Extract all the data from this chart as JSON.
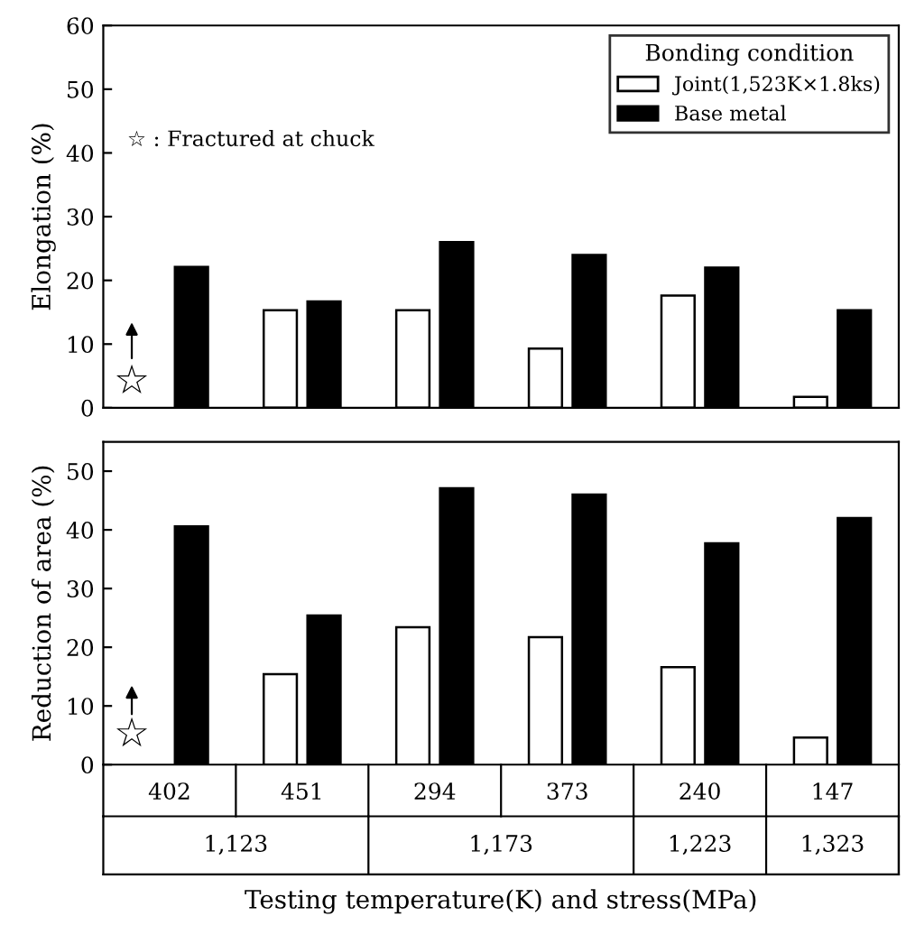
{
  "chart_data": [
    {
      "type": "bar",
      "categories": [
        "402",
        "451",
        "294",
        "373",
        "240",
        "147"
      ],
      "ylabel": "Elongation (%)",
      "ylim": [
        0,
        60
      ],
      "yticks": [
        0,
        10,
        20,
        30,
        40,
        50,
        60
      ],
      "tick_labels": "y",
      "grid": false,
      "legend": "top right",
      "legend_title": "Bonding condition",
      "series": [
        {
          "name": "Joint(1,523K×1.8ks)",
          "color": "#ffffff",
          "values": [
            null,
            15.3,
            15.3,
            9.3,
            17.6,
            1.7
          ]
        },
        {
          "name": "Base metal",
          "color": "#000000",
          "values": [
            22.1,
            16.7,
            26,
            24,
            22,
            15.3
          ]
        }
      ],
      "annotations": [
        "☆ : Fractured at chuck",
        {
          "text": "☆",
          "x": "402",
          "y": 4
        }
      ]
    },
    {
      "type": "bar",
      "categories": [
        "402",
        "451",
        "294",
        "373",
        "240",
        "147"
      ],
      "ylabel": "Reduction of area (%)",
      "xlabel": "Testing temperature(K) and stress(MPa)",
      "ylim": [
        0,
        55
      ],
      "yticks": [
        0,
        10,
        20,
        30,
        40,
        50
      ],
      "grid": false,
      "legend": false,
      "series": [
        {
          "color": "#ffffff",
          "values": [
            null,
            15.4,
            23.4,
            21.7,
            16.6,
            4.6
          ]
        },
        {
          "color": "#000000",
          "values": [
            40.6,
            25.4,
            47.1,
            46,
            37.7,
            42
          ]
        }
      ],
      "annotations": [
        {
          "text": "☆",
          "x": "402",
          "y": 5
        },
        "1,123",
        "1,173",
        "1,223",
        "1,323"
      ]
    }
  ]
}
